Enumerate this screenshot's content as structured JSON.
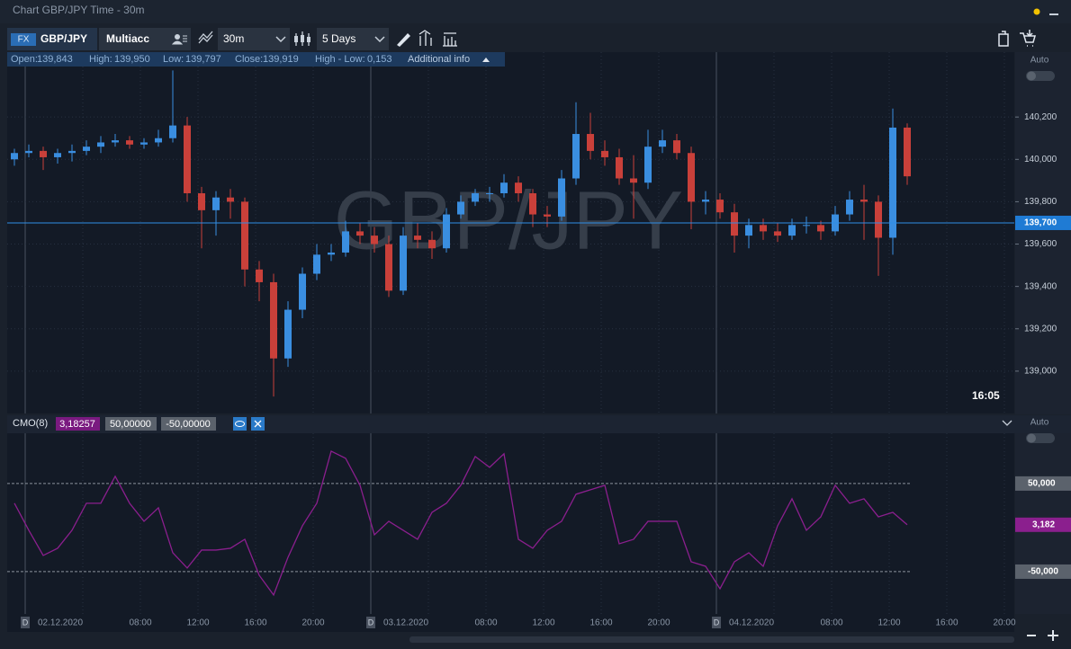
{
  "window": {
    "title": "Chart GBP/JPY Time - 30m"
  },
  "toolbar": {
    "market_badge": "FX",
    "symbol": "GBP/JPY",
    "account": "Multiacc",
    "interval": "30m",
    "range": "5 Days"
  },
  "info": {
    "items": [
      {
        "label": "Open:",
        "value": "139,843"
      },
      {
        "label": "High:",
        "value": "139,950"
      },
      {
        "label": "Low:",
        "value": "139,797"
      },
      {
        "label": "Close:",
        "value": "139,919"
      },
      {
        "label": "High - Low:",
        "value": "0,153"
      }
    ],
    "more": "Additional info"
  },
  "axis_panel": {
    "price_toggle": "Auto",
    "cmo_toggle": "Auto"
  },
  "time_axis": {
    "day_marker": "D",
    "labels": [
      "02.12.2020",
      "08:00",
      "12:00",
      "16:00",
      "20:00",
      "03.12.2020",
      "08:00",
      "12:00",
      "16:00",
      "20:00",
      "04.12.2020",
      "08:00",
      "12:00",
      "16:00",
      "20:00"
    ]
  },
  "chart_data": [
    {
      "type": "candlestick",
      "watermark": "GBP/JPY",
      "time_label": "16:05",
      "up_color": "#3a8ee0",
      "down_color": "#c9403a",
      "ylim": [
        138.8,
        140.43
      ],
      "yticks": [
        {
          "value": 139,
          "label": "139,000"
        },
        {
          "value": 139.2,
          "label": "139,200"
        },
        {
          "value": 139.4,
          "label": "139,400"
        },
        {
          "value": 139.6,
          "label": "139,600"
        },
        {
          "value": 139.8,
          "label": "139,800"
        },
        {
          "value": 140,
          "label": "140,000"
        },
        {
          "value": 140.2,
          "label": "140,200"
        }
      ],
      "current_price": {
        "value": 139.7,
        "label": "139,700"
      },
      "candles": [
        [
          140.0,
          140.05,
          139.97,
          140.03
        ],
        [
          140.03,
          140.07,
          140.01,
          140.04
        ],
        [
          140.04,
          140.06,
          139.95,
          140.01
        ],
        [
          140.01,
          140.05,
          139.98,
          140.03
        ],
        [
          140.03,
          140.07,
          139.99,
          140.04
        ],
        [
          140.04,
          140.09,
          140.02,
          140.06
        ],
        [
          140.06,
          140.11,
          140.03,
          140.08
        ],
        [
          140.08,
          140.12,
          140.06,
          140.09
        ],
        [
          140.09,
          140.11,
          140.05,
          140.07
        ],
        [
          140.07,
          140.1,
          140.05,
          140.08
        ],
        [
          140.08,
          140.14,
          140.06,
          140.1
        ],
        [
          140.1,
          140.42,
          140.08,
          140.16
        ],
        [
          140.16,
          140.2,
          139.8,
          139.84
        ],
        [
          139.84,
          139.87,
          139.58,
          139.76
        ],
        [
          139.76,
          139.85,
          139.64,
          139.82
        ],
        [
          139.82,
          139.86,
          139.72,
          139.8
        ],
        [
          139.8,
          139.82,
          139.4,
          139.48
        ],
        [
          139.48,
          139.52,
          139.33,
          139.42
        ],
        [
          139.42,
          139.46,
          138.88,
          139.06
        ],
        [
          139.06,
          139.33,
          139.02,
          139.29
        ],
        [
          139.29,
          139.49,
          139.25,
          139.46
        ],
        [
          139.46,
          139.6,
          139.43,
          139.55
        ],
        [
          139.55,
          139.6,
          139.52,
          139.56
        ],
        [
          139.56,
          139.71,
          139.54,
          139.66
        ],
        [
          139.66,
          139.7,
          139.6,
          139.64
        ],
        [
          139.64,
          139.68,
          139.56,
          139.6
        ],
        [
          139.6,
          139.64,
          139.35,
          139.38
        ],
        [
          139.38,
          139.68,
          139.36,
          139.64
        ],
        [
          139.64,
          139.7,
          139.58,
          139.62
        ],
        [
          139.62,
          139.66,
          139.53,
          139.58
        ],
        [
          139.58,
          139.77,
          139.56,
          139.74
        ],
        [
          139.74,
          139.83,
          139.72,
          139.8
        ],
        [
          139.8,
          139.86,
          139.78,
          139.84
        ],
        [
          139.84,
          139.87,
          139.8,
          139.84
        ],
        [
          139.84,
          139.93,
          139.82,
          139.89
        ],
        [
          139.89,
          139.92,
          139.8,
          139.84
        ],
        [
          139.84,
          139.86,
          139.68,
          139.74
        ],
        [
          139.74,
          139.78,
          139.68,
          139.73
        ],
        [
          139.73,
          139.95,
          139.71,
          139.91
        ],
        [
          139.91,
          140.27,
          139.88,
          140.12
        ],
        [
          140.12,
          140.22,
          140.0,
          140.04
        ],
        [
          140.04,
          140.09,
          139.97,
          140.01
        ],
        [
          140.01,
          140.05,
          139.88,
          139.91
        ],
        [
          139.91,
          140.02,
          139.72,
          139.89
        ],
        [
          139.89,
          140.14,
          139.86,
          140.06
        ],
        [
          140.06,
          140.14,
          140.03,
          140.09
        ],
        [
          140.09,
          140.12,
          140.0,
          140.03
        ],
        [
          140.03,
          140.06,
          139.67,
          139.8
        ],
        [
          139.8,
          139.85,
          139.74,
          139.81
        ],
        [
          139.81,
          139.84,
          139.72,
          139.75
        ],
        [
          139.75,
          139.79,
          139.56,
          139.64
        ],
        [
          139.64,
          139.72,
          139.58,
          139.69
        ],
        [
          139.69,
          139.72,
          139.62,
          139.66
        ],
        [
          139.66,
          139.7,
          139.61,
          139.64
        ],
        [
          139.64,
          139.72,
          139.62,
          139.69
        ],
        [
          139.69,
          139.73,
          139.65,
          139.69
        ],
        [
          139.69,
          139.71,
          139.62,
          139.66
        ],
        [
          139.66,
          139.78,
          139.64,
          139.74
        ],
        [
          139.74,
          139.85,
          139.71,
          139.81
        ],
        [
          139.81,
          139.88,
          139.62,
          139.8
        ],
        [
          139.8,
          139.83,
          139.45,
          139.63
        ],
        [
          139.63,
          140.24,
          139.55,
          140.15
        ],
        [
          140.15,
          140.17,
          139.88,
          139.92
        ]
      ]
    },
    {
      "type": "line",
      "name": "CMO(8)",
      "color": "#8b1f8e",
      "current_value_label": "3,18257",
      "current_axis_label": "3,182",
      "ylim": [
        -98,
        107
      ],
      "yticks": [
        {
          "value": 50,
          "label": "50,000"
        },
        {
          "value": -50,
          "label": "-50,000"
        }
      ],
      "levels": [
        {
          "value": 50,
          "label": "50,00000"
        },
        {
          "value": -50,
          "label": "-50,00000"
        }
      ],
      "values": [
        27.6,
        -3.1,
        -31.6,
        -23.5,
        -3.1,
        27.6,
        27.6,
        58.2,
        27.6,
        7.1,
        22.4,
        -28.6,
        -45.9,
        -25.5,
        -25.5,
        -23.5,
        -13.3,
        -54.1,
        -76.5,
        -33.7,
        2.0,
        27.6,
        86.7,
        78.6,
        48.0,
        -8.2,
        7.1,
        -3.1,
        -13.3,
        17.3,
        27.6,
        48.0,
        80.6,
        68.4,
        83.7,
        -13.3,
        -23.5,
        -3.1,
        7.1,
        37.8,
        42.9,
        48.0,
        -18.4,
        -13.3,
        7.1,
        7.1,
        7.1,
        -38.8,
        -43.9,
        -69.4,
        -38.8,
        -28.6,
        -43.9,
        2.0,
        32.7,
        -3.1,
        12.2,
        48.0,
        27.6,
        32.7,
        12.2,
        17.3,
        3.18257
      ]
    }
  ]
}
